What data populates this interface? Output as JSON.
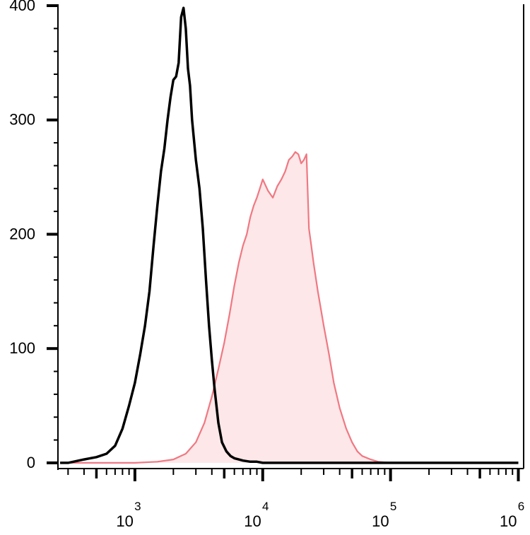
{
  "chart_data": {
    "type": "area",
    "title": "",
    "xlabel": "",
    "ylabel": "",
    "x_scale": "log",
    "xlim": [
      250,
      1100000
    ],
    "ylim": [
      -5,
      400
    ],
    "y_ticks": [
      {
        "value": 0,
        "label": "0"
      },
      {
        "value": 100,
        "label": "100"
      },
      {
        "value": 200,
        "label": "200"
      },
      {
        "value": 300,
        "label": "300"
      },
      {
        "value": 400,
        "label": "400"
      }
    ],
    "x_ticks": [
      {
        "value": 1000,
        "base": "10",
        "exp": "3"
      },
      {
        "value": 10000,
        "base": "10",
        "exp": "4"
      },
      {
        "value": 100000,
        "base": "10",
        "exp": "5"
      },
      {
        "value": 1000000,
        "base": "10",
        "exp": "6"
      }
    ],
    "grid": false,
    "legend": "none",
    "series": [
      {
        "color": "#000000",
        "fill": "none",
        "x": [
          260,
          300,
          400,
          500,
          600,
          700,
          800,
          900,
          1000,
          1100,
          1200,
          1300,
          1400,
          1500,
          1600,
          1700,
          1800,
          1900,
          2000,
          2100,
          2200,
          2300,
          2400,
          2500,
          2600,
          2700,
          2800,
          3000,
          3200,
          3400,
          3600,
          3800,
          4000,
          4200,
          4500,
          4800,
          5200,
          5600,
          6000,
          6500,
          7000,
          8000,
          9000,
          10000,
          12000,
          15000,
          20000,
          30000,
          50000,
          100000,
          1000000
        ],
        "values": [
          0,
          0,
          3,
          5,
          8,
          15,
          30,
          50,
          70,
          95,
          120,
          150,
          190,
          225,
          255,
          275,
          300,
          320,
          335,
          338,
          350,
          390,
          398,
          380,
          345,
          330,
          300,
          265,
          240,
          205,
          160,
          120,
          90,
          65,
          35,
          18,
          10,
          6,
          4,
          3,
          2,
          1,
          1,
          0,
          0,
          0,
          0,
          0,
          0,
          0,
          0
        ]
      },
      {
        "color": "#f07882",
        "fill": "#fde7e8",
        "x": [
          260,
          1000,
          1500,
          2000,
          2500,
          3000,
          3500,
          4000,
          4500,
          5000,
          5500,
          6000,
          6500,
          7000,
          7500,
          8000,
          8500,
          9000,
          9500,
          10000,
          11000,
          12000,
          13000,
          14000,
          15000,
          16000,
          17000,
          18000,
          19000,
          20000,
          21000,
          22000,
          23000,
          24000,
          25000,
          27000,
          30000,
          33000,
          36000,
          40000,
          45000,
          50000,
          55000,
          60000,
          70000,
          80000,
          100000,
          1000000
        ],
        "values": [
          0,
          0,
          1,
          3,
          8,
          18,
          35,
          58,
          82,
          105,
          130,
          155,
          175,
          190,
          200,
          215,
          225,
          232,
          240,
          248,
          238,
          232,
          242,
          248,
          255,
          265,
          268,
          272,
          270,
          262,
          265,
          270,
          205,
          190,
          175,
          150,
          120,
          95,
          70,
          48,
          30,
          18,
          10,
          6,
          3,
          1,
          0,
          0
        ]
      }
    ]
  }
}
